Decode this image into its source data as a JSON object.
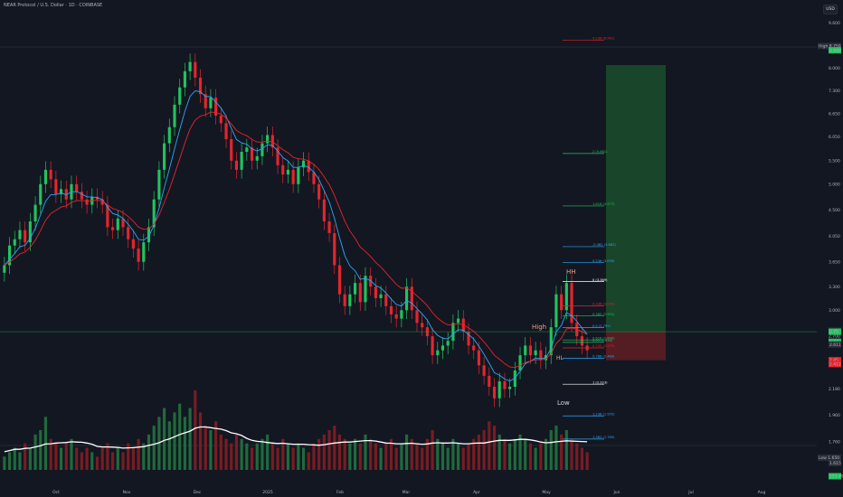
{
  "title": "NEAR Protocol / U.S. Dollar · 1D · COINBASE",
  "currency_button": "USD",
  "chart_data": {
    "type": "candlestick",
    "title": "NEAR Protocol / U.S. Dollar · 1D · COINBASE",
    "y_scale": "log",
    "ylim": [
      1.6,
      9.8
    ],
    "y_ticks": [
      9.6,
      8.8,
      8.0,
      7.3,
      6.65,
      6.05,
      5.5,
      5.0,
      4.5,
      4.05,
      3.65,
      3.3,
      3.0,
      2.7,
      2.42,
      2.18,
      1.96,
      1.76
    ],
    "y_tick_labels": [
      "9.600",
      "8.800",
      "8.000",
      "7.300",
      "6.650",
      "6.050",
      "5.500",
      "5.000",
      "4.500",
      "4.050",
      "3.650",
      "3.300",
      "3.000",
      "2.700",
      "2.420",
      "2.180",
      "1.960",
      "1.760"
    ],
    "x_labels": [
      "Oct",
      "Nov",
      "Dec",
      "2025",
      "Feb",
      "Mar",
      "Apr",
      "May",
      "Jun",
      "Jul",
      "Aug"
    ],
    "colors": {
      "up": "#22c35e",
      "down": "#e5252c",
      "ema_fast": "#2aa7f5",
      "ema_slow": "#e5252c",
      "volume_ma": "#ffffff",
      "background": "#131722",
      "target_zone": "#1b4d2b",
      "stop_zone": "#5c1d24"
    },
    "closes": [
      3.6,
      3.9,
      4.0,
      4.15,
      3.95,
      4.3,
      4.6,
      5.0,
      5.3,
      5.1,
      4.8,
      4.9,
      4.7,
      5.0,
      4.85,
      4.7,
      4.6,
      4.75,
      4.7,
      4.6,
      4.2,
      4.15,
      4.35,
      4.2,
      4.0,
      3.85,
      3.65,
      3.95,
      4.2,
      4.7,
      5.3,
      5.9,
      6.3,
      6.9,
      7.4,
      7.9,
      8.2,
      7.7,
      7.2,
      6.8,
      7.1,
      6.6,
      6.4,
      6.0,
      5.5,
      5.3,
      5.7,
      5.8,
      5.5,
      5.6,
      5.9,
      6.1,
      5.8,
      5.4,
      5.2,
      5.3,
      5.0,
      5.35,
      5.5,
      5.25,
      5.0,
      4.7,
      4.3,
      4.1,
      3.6,
      3.2,
      3.05,
      3.2,
      3.35,
      3.1,
      3.45,
      3.3,
      3.15,
      3.2,
      3.05,
      2.95,
      2.9,
      3.0,
      3.3,
      3.0,
      2.85,
      2.8,
      2.7,
      2.5,
      2.55,
      2.6,
      2.65,
      2.85,
      2.9,
      2.75,
      2.6,
      2.55,
      2.4,
      2.3,
      2.2,
      2.1,
      2.25,
      2.18,
      2.2,
      2.35,
      2.5,
      2.6,
      2.5,
      2.55,
      2.45,
      2.5,
      2.8,
      3.2,
      3.0,
      3.35,
      2.85,
      2.7,
      2.6,
      2.55
    ],
    "volumes": [
      3,
      4,
      5,
      4,
      6,
      5,
      8,
      9,
      12,
      7,
      6,
      5,
      6,
      7,
      5,
      4,
      5,
      4,
      3,
      5,
      6,
      4,
      5,
      4,
      6,
      5,
      7,
      6,
      8,
      10,
      12,
      14,
      11,
      13,
      15,
      12,
      14,
      18,
      13,
      10,
      9,
      11,
      8,
      7,
      6,
      8,
      7,
      6,
      5,
      6,
      7,
      8,
      6,
      5,
      7,
      6,
      5,
      6,
      5,
      4,
      6,
      7,
      8,
      9,
      10,
      8,
      7,
      6,
      7,
      6,
      8,
      7,
      6,
      5,
      6,
      7,
      5,
      6,
      8,
      7,
      6,
      5,
      7,
      9,
      7,
      6,
      5,
      7,
      6,
      5,
      6,
      7,
      8,
      9,
      11,
      10,
      8,
      7,
      6,
      7,
      8,
      7,
      6,
      5,
      6,
      7,
      9,
      10,
      8,
      9,
      7,
      6,
      5,
      4
    ],
    "fib_levels": [
      {
        "label": "4.236 (8.961)",
        "value": 8.961,
        "color": "#e5252c"
      },
      {
        "label": "2 (5.661)",
        "value": 5.661,
        "color": "#22c35e"
      },
      {
        "label": "1.618 (4.577)",
        "value": 4.577,
        "color": "#22c35e"
      },
      {
        "label": "-0.382 (3.882)",
        "value": 3.882,
        "color": "#2aa7f5"
      },
      {
        "label": "0.236 (3.639)",
        "value": 3.639,
        "color": "#2aa7f5"
      },
      {
        "label": "0 (3.369)",
        "value": 3.369,
        "color": "#ffffff"
      },
      {
        "label": "0.236 (3.055)",
        "value": 3.055,
        "color": "#e5252c"
      },
      {
        "label": "0.382 (2.931)",
        "value": 2.931,
        "color": "#22c35e"
      },
      {
        "label": "0.5 (2.795)",
        "value": 2.795,
        "color": "#2aa7f5"
      },
      {
        "label": "0.618 (2.660)",
        "value": 2.66,
        "color": "#22c35e"
      },
      {
        "label": "0.65 (2.634)",
        "value": 2.634,
        "color": "#22c35e"
      },
      {
        "label": "0.702 (2.575)",
        "value": 2.575,
        "color": "#e5252c"
      },
      {
        "label": "0.786 (2.469)",
        "value": 2.469,
        "color": "#2aa7f5"
      },
      {
        "label": "1 (2.223)",
        "value": 2.223,
        "color": "#ffffff"
      },
      {
        "label": "1.236 (1.955)",
        "value": 1.955,
        "color": "#2aa7f5"
      },
      {
        "label": "1.382 (1.780)",
        "value": 1.78,
        "color": "#2aa7f5"
      }
    ],
    "price_labels": [
      {
        "tag": "High",
        "value": "8.750",
        "price": 8.75,
        "color": "#2a2e39"
      },
      {
        "tag": "",
        "value": "8.600",
        "price": 8.6,
        "color": "#22c35e"
      },
      {
        "tag": "",
        "value": "2.762",
        "price": 2.762,
        "color": "#2a2e39"
      },
      {
        "tag": "",
        "value": "2.75",
        "price": 2.75,
        "color": "#22c35e"
      },
      {
        "tag": "",
        "value": "2.64",
        "price": 2.64,
        "color": "#22c35e"
      },
      {
        "tag": "",
        "value": "2.611",
        "price": 2.611,
        "color": "#2a2e39"
      },
      {
        "tag": "",
        "value": "2.45",
        "price": 2.45,
        "color": "#e5252c"
      },
      {
        "tag": "",
        "value": "2.412",
        "price": 2.412,
        "color": "#e5252c"
      },
      {
        "tag": "Low",
        "value": "1.650",
        "price": 1.65,
        "color": "#2a2e39"
      },
      {
        "tag": "",
        "value": "1.615",
        "price": 1.615,
        "color": "#2a2e39"
      },
      {
        "tag": "",
        "value": "151.49K",
        "price": 0,
        "color": "#22c35e"
      }
    ],
    "annotations": {
      "hh": "HH",
      "high": "High",
      "hl": "HL",
      "low": "Low"
    },
    "position": {
      "entry": 2.75,
      "target": 8.1,
      "stop": 2.45
    }
  }
}
